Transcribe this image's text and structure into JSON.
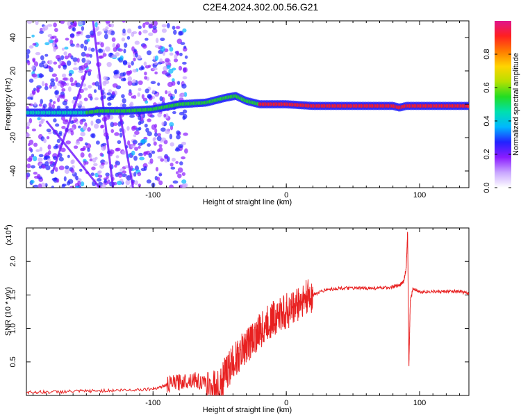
{
  "title": "C2E4.2024.302.00.56.G21",
  "chart_data": [
    {
      "type": "heatmap",
      "xlabel": "Height of straight line (km)",
      "ylabel": "Frequency (Hz)",
      "xlim": [
        -195,
        137
      ],
      "ylim": [
        -50,
        50
      ],
      "xticks": [
        -100,
        0,
        100
      ],
      "yticks": [
        -40,
        -20,
        0,
        20,
        40
      ],
      "xtick_labels": [
        "-100",
        "0",
        "100"
      ],
      "ytick_labels": [
        "-40",
        "-20",
        "0",
        "20",
        "40"
      ],
      "ridge_x": [
        -195,
        -175,
        -150,
        -140,
        -120,
        -100,
        -80,
        -60,
        -45,
        -38,
        -30,
        -20,
        0,
        20,
        40,
        60,
        80,
        85,
        90,
        100,
        137
      ],
      "ridge_y": [
        -5,
        -5,
        -5,
        -4,
        -4,
        -3,
        0,
        1,
        4,
        5,
        2,
        0,
        0,
        -1,
        -1,
        -1,
        -1,
        -2,
        -1,
        -1,
        -1
      ],
      "colorbar": {
        "label": "Normalized spectral amplitude",
        "range": [
          0,
          1
        ],
        "ticks": [
          "0.0",
          "0.2",
          "0.4",
          "0.6",
          "0.8"
        ],
        "colors": [
          "#ffffff",
          "#c9a6ff",
          "#8b1cff",
          "#2222ff",
          "#00b7ff",
          "#00e0b0",
          "#22dd22",
          "#b7e000",
          "#ffd400",
          "#ff7a00",
          "#ff2020",
          "#e0148c"
        ]
      }
    },
    {
      "type": "line",
      "xlabel": "Height of straight line (km)",
      "ylabel": "SNR (10 * v/v)",
      "multiplier": "(x10",
      "multiplier_exp": "4",
      "multiplier_close": ")",
      "xlim": [
        -195,
        137
      ],
      "ylim": [
        0,
        2.5
      ],
      "xticks": [
        -100,
        0,
        100
      ],
      "yticks": [
        0.5,
        1.0,
        1.5,
        2.0
      ],
      "xtick_labels": [
        "-100",
        "0",
        "100"
      ],
      "ytick_labels": [
        "0.5",
        "1.0",
        "1.5",
        "2.0"
      ],
      "color": "#e82020",
      "series": [
        {
          "name": "SNR",
          "x": [
            -195,
            -180,
            -160,
            -140,
            -120,
            -100,
            -90,
            -80,
            -70,
            -60,
            -50,
            -45,
            -40,
            -35,
            -30,
            -25,
            -20,
            -15,
            -10,
            -5,
            0,
            5,
            10,
            15,
            20,
            30,
            40,
            50,
            60,
            70,
            80,
            85,
            88,
            90,
            91,
            92,
            93,
            95,
            100,
            110,
            120,
            130,
            137
          ],
          "y": [
            0.05,
            0.05,
            0.06,
            0.07,
            0.08,
            0.1,
            0.15,
            0.2,
            0.25,
            0.15,
            0.12,
            0.35,
            0.5,
            0.6,
            0.75,
            0.85,
            0.95,
            1.05,
            1.15,
            1.2,
            1.25,
            1.3,
            1.4,
            1.45,
            1.5,
            1.58,
            1.6,
            1.6,
            1.6,
            1.6,
            1.62,
            1.65,
            1.7,
            1.9,
            2.45,
            0.45,
            1.4,
            1.6,
            1.55,
            1.55,
            1.55,
            1.55,
            1.52
          ]
        }
      ]
    }
  ]
}
